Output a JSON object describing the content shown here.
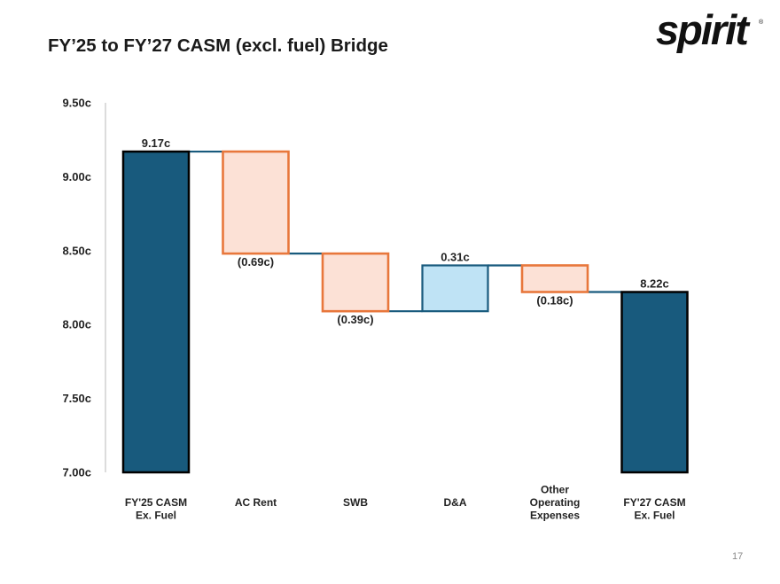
{
  "page": {
    "title": "FY’25 to FY’27 CASM (excl. fuel) Bridge",
    "logo_text": "spirit",
    "logo_mark": "®",
    "page_number": "17"
  },
  "colors": {
    "total_fill": "#185a7d",
    "total_stroke": "#000000",
    "decrease_fill": "#fce1d6",
    "decrease_stroke": "#e8773c",
    "increase_fill": "#bfe3f5",
    "increase_stroke": "#185a7d",
    "connector": "#185a7d",
    "axis": "#d0d0d0"
  },
  "chart_data": {
    "type": "waterfall",
    "title": "FY’25 to FY’27 CASM (excl. fuel) Bridge",
    "unit": "cents",
    "ylim": [
      7.0,
      9.5
    ],
    "yticks": [
      7.0,
      7.5,
      8.0,
      8.5,
      9.0,
      9.5
    ],
    "ytick_labels": [
      "7.00c",
      "7.50c",
      "8.00c",
      "8.50c",
      "9.00c",
      "9.50c"
    ],
    "bars": [
      {
        "category": [
          "FY'25 CASM",
          "Ex. Fuel"
        ],
        "kind": "total",
        "value": 9.17,
        "label": "9.17c",
        "label_pos": "above"
      },
      {
        "category": [
          "AC Rent"
        ],
        "kind": "decrease",
        "value": -0.69,
        "label": "(0.69c)",
        "label_pos": "below"
      },
      {
        "category": [
          "SWB"
        ],
        "kind": "decrease",
        "value": -0.39,
        "label": "(0.39c)",
        "label_pos": "below"
      },
      {
        "category": [
          "D&A"
        ],
        "kind": "increase",
        "value": 0.31,
        "label": "0.31c",
        "label_pos": "above"
      },
      {
        "category": [
          "Other",
          "Operating",
          "Expenses"
        ],
        "kind": "decrease",
        "value": -0.18,
        "label": "(0.18c)",
        "label_pos": "below"
      },
      {
        "category": [
          "FY'27 CASM",
          "Ex. Fuel"
        ],
        "kind": "total",
        "value": 8.22,
        "label": "8.22c",
        "label_pos": "above"
      }
    ]
  }
}
